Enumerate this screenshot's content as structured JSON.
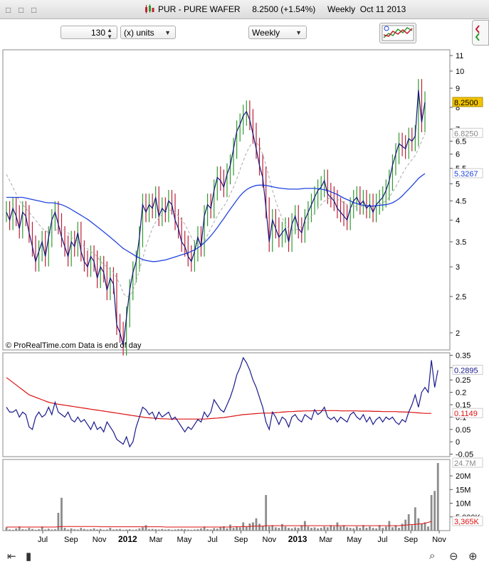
{
  "window": {
    "title": "PUR - PURE WAFER     8.2500 (+1.54%)     Weekly  Oct 11 2013"
  },
  "toolbar": {
    "units_value": "130",
    "units_label": "(x) units",
    "period_label": "Weekly"
  },
  "watermark": "© ProRealTime.com  Data is end of day",
  "colors": {
    "up": "#2f9a2f",
    "down": "#b8203a",
    "close_line": "#14147a",
    "ma_fast": "#aaaaaa",
    "ma_slow": "#2244dd",
    "osc": "#1a1a8c",
    "osc_ma": "#dd1111",
    "volume": "#8c8c8c",
    "vol_ma": "#dd1111",
    "last_price_bg": "#f2c400"
  },
  "chart_data": [
    {
      "type": "line",
      "title": "",
      "y_scale": "log",
      "ylim": [
        1.8,
        11.4
      ],
      "y_ticks": [
        "11",
        "10",
        "9",
        "8",
        "7",
        "6.5",
        "6",
        "5.5",
        "5",
        "4.5",
        "4",
        "3.5",
        "3",
        "2.5",
        "2"
      ],
      "x_ticks": [
        "Jul",
        "Sep",
        "Nov",
        "2012",
        "Mar",
        "May",
        "Jul",
        "Sep",
        "Nov",
        "2013",
        "Mar",
        "May",
        "Jul",
        "Sep",
        "Nov"
      ],
      "price_labels": {
        "last": "8.2500",
        "ma_fast": "6.8250",
        "ma_slow": "5.3267"
      },
      "series": [
        {
          "kind": "close",
          "values": [
            4.2,
            4.0,
            4.3,
            4.1,
            3.8,
            4.2,
            4.1,
            3.7,
            3.4,
            3.1,
            3.3,
            3.5,
            3.2,
            3.6,
            4.0,
            4.2,
            3.9,
            3.6,
            3.4,
            3.2,
            3.5,
            3.4,
            3.7,
            3.3,
            3.1,
            3.0,
            3.2,
            3.1,
            2.8,
            3.0,
            2.9,
            2.6,
            2.8,
            2.7,
            2.1,
            2.0,
            1.85,
            2.2,
            2.6,
            2.9,
            3.1,
            3.6,
            4.4,
            4.2,
            4.4,
            4.3,
            4.6,
            4.1,
            4.3,
            4.2,
            4.5,
            4.4,
            4.0,
            3.8,
            3.5,
            3.4,
            3.2,
            3.1,
            3.3,
            3.6,
            3.4,
            4.1,
            4.4,
            4.3,
            4.8,
            5.2,
            5.1,
            4.9,
            5.3,
            5.6,
            6.2,
            6.9,
            7.2,
            7.6,
            7.8,
            7.4,
            6.8,
            6.2,
            5.6,
            5.2,
            4.3,
            3.5,
            4.0,
            3.8,
            3.6,
            3.7,
            3.8,
            3.5,
            3.9,
            4.1,
            3.8,
            3.7,
            4.0,
            4.2,
            4.4,
            4.6,
            4.8,
            4.9,
            5.1,
            4.7,
            4.6,
            4.5,
            4.3,
            4.2,
            4.1,
            4.0,
            4.3,
            4.5,
            4.6,
            4.4,
            4.5,
            4.3,
            4.4,
            4.2,
            4.4,
            4.5,
            4.6,
            4.8,
            5.1,
            5.6,
            6.0,
            6.4,
            6.3,
            6.2,
            6.6,
            6.5,
            6.7,
            8.9,
            7.3,
            8.25
          ]
        },
        {
          "kind": "ma_fast",
          "values": [
            5.3,
            5.1,
            4.9,
            4.7,
            4.5,
            4.4,
            4.3,
            4.2,
            4.1,
            4.0,
            3.9,
            3.8,
            3.75,
            3.7,
            3.7,
            3.75,
            3.8,
            3.8,
            3.75,
            3.7,
            3.6,
            3.55,
            3.5,
            3.45,
            3.4,
            3.35,
            3.3,
            3.25,
            3.2,
            3.1,
            3.05,
            3.0,
            2.95,
            2.9,
            2.8,
            2.7,
            2.55,
            2.5,
            2.5,
            2.6,
            2.75,
            2.95,
            3.15,
            3.4,
            3.6,
            3.8,
            3.95,
            4.05,
            4.15,
            4.2,
            4.25,
            4.25,
            4.2,
            4.1,
            4.0,
            3.9,
            3.75,
            3.6,
            3.5,
            3.45,
            3.45,
            3.5,
            3.65,
            3.8,
            3.95,
            4.1,
            4.25,
            4.35,
            4.5,
            4.7,
            4.9,
            5.15,
            5.45,
            5.75,
            6.05,
            6.3,
            6.45,
            6.45,
            6.3,
            6.0,
            5.6,
            5.2,
            4.8,
            4.5,
            4.25,
            4.05,
            3.9,
            3.8,
            3.75,
            3.75,
            3.8,
            3.85,
            3.9,
            4.0,
            4.1,
            4.2,
            4.3,
            4.4,
            4.5,
            4.55,
            4.6,
            4.6,
            4.55,
            4.5,
            4.45,
            4.4,
            4.35,
            4.35,
            4.35,
            4.35,
            4.35,
            4.35,
            4.35,
            4.35,
            4.35,
            4.4,
            4.45,
            4.5,
            4.6,
            4.75,
            4.9,
            5.1,
            5.3,
            5.5,
            5.65,
            5.8,
            5.95,
            6.2,
            6.5,
            6.825
          ]
        },
        {
          "kind": "ma_slow",
          "values": [
            4.6,
            4.6,
            4.6,
            4.6,
            4.6,
            4.6,
            4.58,
            4.56,
            4.54,
            4.52,
            4.5,
            4.48,
            4.46,
            4.45,
            4.45,
            4.44,
            4.42,
            4.4,
            4.36,
            4.32,
            4.27,
            4.22,
            4.17,
            4.12,
            4.07,
            4.02,
            3.96,
            3.9,
            3.84,
            3.78,
            3.72,
            3.66,
            3.6,
            3.54,
            3.48,
            3.42,
            3.36,
            3.32,
            3.28,
            3.24,
            3.2,
            3.17,
            3.14,
            3.12,
            3.11,
            3.1,
            3.1,
            3.11,
            3.12,
            3.13,
            3.15,
            3.17,
            3.19,
            3.21,
            3.23,
            3.25,
            3.27,
            3.3,
            3.33,
            3.37,
            3.42,
            3.48,
            3.55,
            3.63,
            3.72,
            3.82,
            3.93,
            4.04,
            4.16,
            4.28,
            4.4,
            4.52,
            4.64,
            4.74,
            4.82,
            4.88,
            4.92,
            4.95,
            4.96,
            4.96,
            4.95,
            4.93,
            4.91,
            4.89,
            4.87,
            4.86,
            4.85,
            4.84,
            4.84,
            4.84,
            4.84,
            4.85,
            4.86,
            4.86,
            4.86,
            4.86,
            4.85,
            4.84,
            4.82,
            4.8,
            4.76,
            4.72,
            4.68,
            4.63,
            4.58,
            4.54,
            4.5,
            4.46,
            4.43,
            4.4,
            4.38,
            4.37,
            4.36,
            4.36,
            4.37,
            4.38,
            4.39,
            4.4,
            4.42,
            4.45,
            4.5,
            4.56,
            4.64,
            4.74,
            4.84,
            4.94,
            5.05,
            5.17,
            5.25,
            5.3267
          ]
        }
      ]
    },
    {
      "type": "line",
      "title": "",
      "ylim": [
        -0.06,
        0.36
      ],
      "y_ticks": [
        "0.35",
        "0.3",
        "0.25",
        "0.2",
        "0.15",
        "0.1",
        "0.05",
        "0",
        "-0.05"
      ],
      "value_labels": {
        "osc": "0.2895",
        "osc_ma": "0.1149"
      },
      "series": [
        {
          "kind": "osc",
          "values": [
            0.14,
            0.12,
            0.12,
            0.13,
            0.1,
            0.12,
            0.11,
            0.06,
            0.05,
            0.1,
            0.12,
            0.1,
            0.11,
            0.14,
            0.11,
            0.16,
            0.12,
            0.11,
            0.1,
            0.12,
            0.09,
            0.08,
            0.1,
            0.08,
            0.09,
            0.07,
            0.05,
            0.08,
            0.05,
            0.06,
            0.04,
            0.08,
            0.06,
            0.04,
            0.01,
            0.0,
            -0.01,
            0.02,
            -0.02,
            0.0,
            0.06,
            0.1,
            0.14,
            0.13,
            0.11,
            0.12,
            0.09,
            0.12,
            0.1,
            0.11,
            0.12,
            0.09,
            0.1,
            0.08,
            0.06,
            0.04,
            0.06,
            0.05,
            0.07,
            0.09,
            0.08,
            0.12,
            0.1,
            0.12,
            0.17,
            0.15,
            0.13,
            0.12,
            0.15,
            0.18,
            0.22,
            0.27,
            0.3,
            0.34,
            0.32,
            0.29,
            0.25,
            0.22,
            0.18,
            0.14,
            0.08,
            0.05,
            0.12,
            0.1,
            0.07,
            0.1,
            0.09,
            0.06,
            0.1,
            0.11,
            0.09,
            0.08,
            0.11,
            0.1,
            0.09,
            0.13,
            0.11,
            0.12,
            0.14,
            0.1,
            0.09,
            0.1,
            0.08,
            0.1,
            0.09,
            0.08,
            0.11,
            0.12,
            0.1,
            0.09,
            0.11,
            0.08,
            0.1,
            0.07,
            0.09,
            0.1,
            0.08,
            0.1,
            0.09,
            0.1,
            0.08,
            0.07,
            0.09,
            0.08,
            0.12,
            0.15,
            0.19,
            0.14,
            0.2,
            0.22,
            0.2,
            0.33,
            0.22,
            0.2895
          ]
        },
        {
          "kind": "osc_ma",
          "values": [
            0.26,
            0.25,
            0.24,
            0.23,
            0.22,
            0.21,
            0.2,
            0.19,
            0.185,
            0.18,
            0.175,
            0.17,
            0.165,
            0.16,
            0.157,
            0.154,
            0.152,
            0.15,
            0.148,
            0.146,
            0.144,
            0.142,
            0.14,
            0.138,
            0.136,
            0.134,
            0.132,
            0.13,
            0.128,
            0.126,
            0.124,
            0.122,
            0.12,
            0.118,
            0.116,
            0.114,
            0.112,
            0.11,
            0.108,
            0.106,
            0.104,
            0.102,
            0.1,
            0.098,
            0.097,
            0.096,
            0.095,
            0.094,
            0.093,
            0.093,
            0.092,
            0.092,
            0.092,
            0.092,
            0.092,
            0.092,
            0.092,
            0.092,
            0.092,
            0.092,
            0.092,
            0.092,
            0.093,
            0.094,
            0.095,
            0.096,
            0.097,
            0.098,
            0.1,
            0.102,
            0.104,
            0.106,
            0.108,
            0.11,
            0.111,
            0.112,
            0.113,
            0.114,
            0.115,
            0.116,
            0.116,
            0.116,
            0.117,
            0.118,
            0.119,
            0.12,
            0.121,
            0.122,
            0.122,
            0.123,
            0.124,
            0.124,
            0.125,
            0.125,
            0.125,
            0.126,
            0.126,
            0.126,
            0.126,
            0.126,
            0.126,
            0.126,
            0.126,
            0.125,
            0.125,
            0.125,
            0.125,
            0.125,
            0.125,
            0.124,
            0.124,
            0.124,
            0.124,
            0.123,
            0.123,
            0.123,
            0.122,
            0.122,
            0.122,
            0.122,
            0.122,
            0.121,
            0.121,
            0.12,
            0.12,
            0.119,
            0.118,
            0.117,
            0.116,
            0.115,
            0.115,
            0.1149
          ]
        }
      ]
    },
    {
      "type": "bar",
      "title": "",
      "ylim": [
        0,
        26
      ],
      "y_ticks": [
        "20M",
        "15M",
        "10M",
        "5,000K"
      ],
      "value_labels": {
        "last_volume": "24.7M",
        "vol_ma": "3,365K"
      },
      "series": [
        {
          "kind": "volume_millions",
          "values": [
            1.2,
            0.4,
            0.3,
            0.8,
            1.5,
            0.5,
            0.4,
            1.0,
            0.6,
            0.3,
            0.5,
            1.5,
            0.4,
            0.7,
            0.4,
            0.5,
            6.5,
            12.0,
            1.0,
            0.4,
            0.8,
            0.5,
            0.4,
            1.0,
            0.6,
            0.4,
            0.5,
            0.8,
            0.4,
            0.6,
            0.3,
            0.4,
            1.0,
            0.4,
            0.5,
            0.6,
            0.3,
            0.4,
            0.5,
            0.3,
            0.4,
            0.8,
            1.2,
            2.0,
            0.5,
            0.6,
            0.5,
            0.4,
            0.6,
            0.4,
            0.5,
            0.3,
            0.4,
            0.5,
            0.6,
            0.5,
            0.4,
            0.3,
            0.4,
            0.5,
            0.8,
            1.5,
            0.5,
            0.4,
            0.9,
            0.7,
            1.2,
            1.6,
            0.8,
            2.2,
            1.0,
            1.5,
            1.2,
            3.0,
            1.4,
            2.6,
            3.0,
            4.5,
            2.5,
            1.8,
            13.0,
            1.5,
            2.0,
            1.2,
            1.0,
            2.4,
            1.5,
            1.0,
            0.8,
            1.2,
            1.0,
            2.0,
            3.5,
            1.5,
            1.0,
            1.2,
            0.8,
            1.0,
            1.5,
            1.2,
            2.0,
            1.5,
            3.0,
            1.5,
            2.0,
            1.2,
            1.0,
            0.8,
            1.5,
            1.0,
            2.0,
            1.0,
            1.5,
            1.0,
            0.8,
            2.0,
            1.0,
            1.5,
            3.5,
            1.2,
            2.0,
            1.0,
            2.5,
            4.0,
            6.0,
            2.0,
            8.5,
            4.5,
            2.5,
            3.0,
            1.5,
            13.0,
            14.5,
            24.7
          ]
        },
        {
          "kind": "vol_ma",
          "values": [
            1.3,
            1.3,
            1.3,
            1.3,
            1.3,
            1.3,
            1.3,
            1.3,
            1.3,
            1.3,
            1.3,
            1.3,
            1.3,
            1.3,
            1.3,
            1.3,
            1.4,
            1.5,
            1.5,
            1.5,
            1.5,
            1.5,
            1.5,
            1.5,
            1.5,
            1.5,
            1.5,
            1.5,
            1.5,
            1.4,
            1.4,
            1.4,
            1.4,
            1.4,
            1.4,
            1.4,
            1.4,
            1.4,
            1.4,
            1.4,
            1.4,
            1.4,
            1.4,
            1.4,
            1.4,
            1.4,
            1.4,
            1.4,
            1.4,
            1.3,
            1.3,
            1.3,
            1.3,
            1.3,
            1.3,
            1.3,
            1.3,
            1.3,
            1.3,
            1.3,
            1.3,
            1.3,
            1.3,
            1.3,
            1.3,
            1.3,
            1.3,
            1.3,
            1.3,
            1.3,
            1.4,
            1.4,
            1.4,
            1.5,
            1.5,
            1.5,
            1.6,
            1.6,
            1.6,
            1.6,
            1.8,
            1.8,
            1.8,
            1.8,
            1.8,
            1.8,
            1.8,
            1.8,
            1.8,
            1.8,
            1.8,
            1.8,
            1.8,
            1.8,
            1.8,
            1.8,
            1.8,
            1.8,
            1.8,
            1.8,
            1.8,
            1.8,
            1.8,
            1.8,
            1.8,
            1.8,
            1.8,
            1.8,
            1.8,
            1.8,
            1.8,
            1.8,
            1.8,
            1.8,
            1.8,
            1.8,
            1.8,
            1.8,
            1.8,
            1.8,
            1.8,
            1.8,
            1.9,
            2.0,
            2.1,
            2.2,
            2.3,
            2.4,
            2.5,
            2.7,
            3.0,
            3.365
          ]
        }
      ]
    }
  ]
}
